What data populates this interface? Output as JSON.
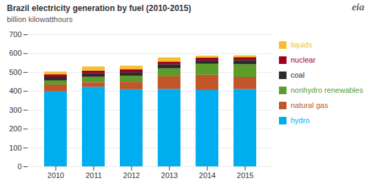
{
  "chart_data": {
    "type": "bar",
    "stacked": true,
    "title": "Brazil electricity generation by fuel (2010-2015)",
    "subtitle": "billion kilowatthours",
    "annotations": [
      "eia"
    ],
    "categories": [
      "2010",
      "2011",
      "2012",
      "2013",
      "2014",
      "2015"
    ],
    "series": [
      {
        "name": "hydro",
        "color": "#00AEEF",
        "values": [
          398,
          422,
          409,
          411,
          405,
          410
        ]
      },
      {
        "name": "natural gas",
        "color": "#C0562A",
        "values": [
          36,
          25,
          39,
          67,
          81,
          64
        ]
      },
      {
        "name": "nonhydro renewables",
        "color": "#5B9C2A",
        "values": [
          22,
          28,
          32,
          42,
          58,
          68
        ]
      },
      {
        "name": "coal",
        "color": "#2B2B2B",
        "values": [
          18,
          18,
          19,
          22,
          18,
          22
        ]
      },
      {
        "name": "nuclear",
        "color": "#A00020",
        "values": [
          14,
          15,
          16,
          14,
          15,
          15
        ]
      },
      {
        "name": "liquids",
        "color": "#F5C030",
        "values": [
          15,
          22,
          19,
          22,
          10,
          10
        ]
      }
    ],
    "ylim": [
      0,
      700
    ],
    "yticks": [
      0,
      100,
      200,
      300,
      400,
      500,
      600,
      700
    ],
    "grid": true,
    "legend": "right"
  }
}
